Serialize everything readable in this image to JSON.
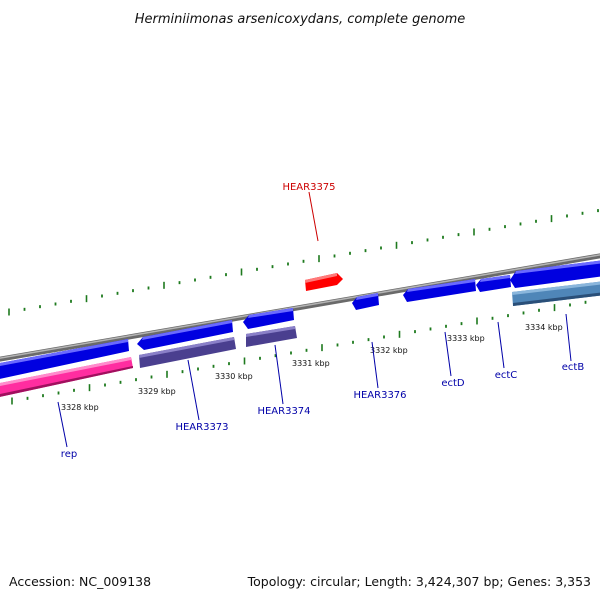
{
  "title": "Herminiimonas arsenicoxydans, complete genome",
  "footer": {
    "accession": "Accession: NC_009138",
    "summary": "Topology: circular; Length: 3,424,307 bp; Genes: 3,353"
  },
  "colors": {
    "backbone": "#8a8a8a",
    "tick": "#1e7a1e",
    "cds": "#0000e0",
    "rna": "#ff2da0",
    "protein": "#4a3f8f",
    "protein_alt": "#4f86b8",
    "highlight": "#ff0000",
    "label": "#0000a8",
    "label_highlight": "#cc0000"
  },
  "scale_labels": [
    "3328 kbp",
    "3329 kbp",
    "3330 kbp",
    "3331 kbp",
    "3332 kbp",
    "3333 kbp",
    "3334 kbp"
  ],
  "genes": [
    {
      "name": "rep"
    },
    {
      "name": "HEAR3373"
    },
    {
      "name": "HEAR3374"
    },
    {
      "name": "HEAR3375"
    },
    {
      "name": "HEAR3376"
    },
    {
      "name": "ectD"
    },
    {
      "name": "ectC"
    },
    {
      "name": "ectB"
    }
  ]
}
